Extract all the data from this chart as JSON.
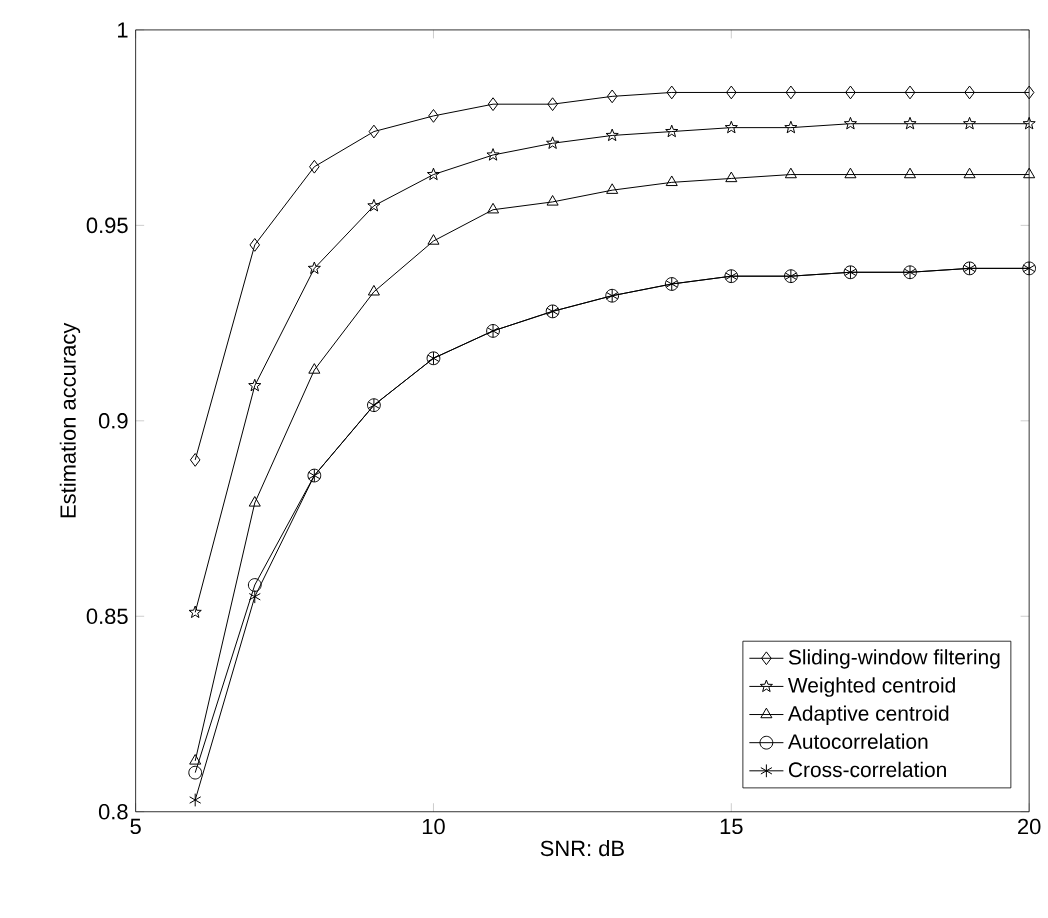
{
  "chart_data": {
    "type": "line",
    "xlabel": "SNR: dB",
    "ylabel": "Estimation accuracy",
    "x": [
      6,
      7,
      8,
      9,
      10,
      11,
      12,
      13,
      14,
      15,
      16,
      17,
      18,
      19,
      20
    ],
    "series": [
      {
        "name": "Sliding-window filtering",
        "color": "#000000",
        "marker": "diamond",
        "values": [
          0.89,
          0.945,
          0.965,
          0.974,
          0.978,
          0.981,
          0.981,
          0.983,
          0.984,
          0.984,
          0.984,
          0.984,
          0.984,
          0.984,
          0.984
        ]
      },
      {
        "name": "Weighted centroid",
        "color": "#000000",
        "marker": "star",
        "values": [
          0.851,
          0.909,
          0.939,
          0.955,
          0.963,
          0.968,
          0.971,
          0.973,
          0.974,
          0.975,
          0.975,
          0.976,
          0.976,
          0.976,
          0.976
        ]
      },
      {
        "name": "Adaptive centroid",
        "color": "#000000",
        "marker": "triangle",
        "values": [
          0.813,
          0.879,
          0.913,
          0.933,
          0.946,
          0.954,
          0.956,
          0.959,
          0.961,
          0.962,
          0.963,
          0.963,
          0.963,
          0.963,
          0.963
        ]
      },
      {
        "name": "Autocorrelation",
        "color": "#000000",
        "marker": "circle",
        "values": [
          0.81,
          0.858,
          0.886,
          0.904,
          0.916,
          0.923,
          0.928,
          0.932,
          0.935,
          0.937,
          0.937,
          0.938,
          0.938,
          0.939,
          0.939
        ]
      },
      {
        "name": "Cross-correlation",
        "color": "#000000",
        "marker": "cross",
        "values": [
          0.803,
          0.855,
          0.886,
          0.904,
          0.916,
          0.923,
          0.928,
          0.932,
          0.935,
          0.937,
          0.937,
          0.938,
          0.938,
          0.939,
          0.939
        ]
      }
    ],
    "xlim": [
      5,
      20
    ],
    "xticks": [
      5,
      10,
      15,
      20
    ],
    "ylim": [
      0.8,
      1
    ],
    "yticks": [
      0.8,
      0.85,
      0.9,
      0.95,
      1
    ],
    "grid": false,
    "legend": "bottom right",
    "line_style": "solid"
  }
}
